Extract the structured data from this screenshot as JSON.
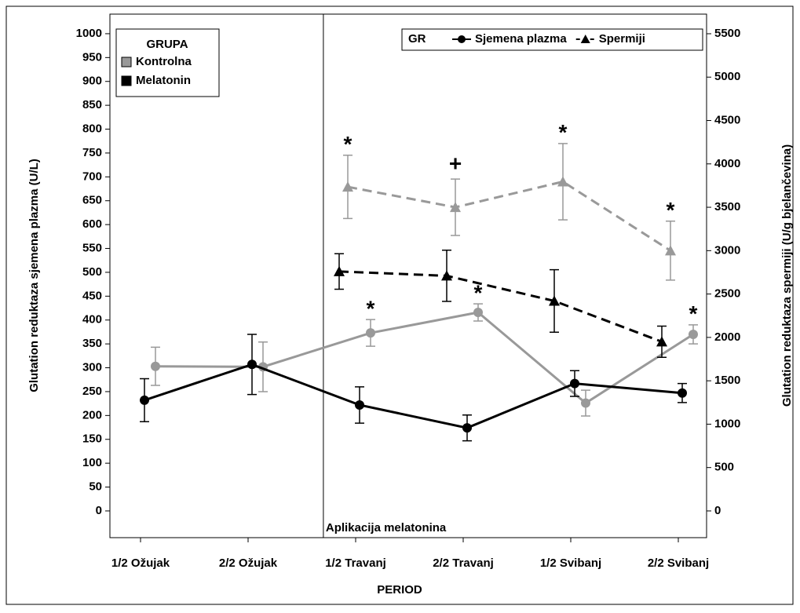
{
  "chart_data": {
    "type": "line",
    "xlabel": "PERIOD",
    "ylabel": "Glutation reduktaza sjemena plazma (U/L)",
    "y2label": "Glutation reduktaza spermiji (U/g bjelančevina)",
    "categories": [
      "1/2 Ožujak",
      "2/2 Ožujak",
      "1/2 Travanj",
      "2/2 Travanj",
      "1/2 Svibanj",
      "2/2 Svibanj"
    ],
    "ylim": [
      -56,
      1041
    ],
    "yticks": [
      0,
      50,
      100,
      150,
      200,
      250,
      300,
      350,
      400,
      450,
      500,
      550,
      600,
      650,
      700,
      750,
      800,
      850,
      900,
      950,
      1000
    ],
    "y2lim": [
      -308,
      5726
    ],
    "y2ticks": [
      0,
      500,
      1000,
      1500,
      2000,
      2500,
      3000,
      3500,
      4000,
      4500,
      5000,
      5500
    ],
    "reference_line": {
      "x": 1.7,
      "label": "Aplikacija melatonina"
    },
    "legend_groups": {
      "title": "GRUPA",
      "entries": [
        {
          "name": "Kontrolna",
          "color": "#999999"
        },
        {
          "name": "Melatonin",
          "color": "#000000"
        }
      ]
    },
    "legend_measures": {
      "title": "GR",
      "entries": [
        {
          "name": "Sjemena plazma",
          "marker": "circle",
          "dash": "solid"
        },
        {
          "name": "Spermiji",
          "marker": "triangle",
          "dash": "dashed"
        }
      ]
    },
    "series": [
      {
        "color": "#999999",
        "marker": "circle",
        "dash": "solid",
        "axis": "y",
        "values": [
          303,
          302,
          373,
          416,
          226,
          370
        ],
        "errors": [
          40,
          52,
          28,
          18,
          27,
          20
        ],
        "annotations": [
          null,
          null,
          "*",
          "*",
          null,
          "*"
        ]
      },
      {
        "color": "#000000",
        "marker": "circle",
        "dash": "solid",
        "axis": "y",
        "values": [
          232,
          307,
          222,
          174,
          267,
          247
        ],
        "errors": [
          45,
          63,
          38,
          27,
          27,
          20
        ],
        "annotations": [
          null,
          null,
          null,
          null,
          null,
          null
        ]
      },
      {
        "color": "#999999",
        "marker": "triangle",
        "dash": "dashed",
        "axis": "y2",
        "values": [
          null,
          null,
          3735,
          3500,
          3795,
          3000
        ],
        "errors": [
          null,
          null,
          365,
          325,
          440,
          340
        ],
        "annotations": [
          null,
          null,
          "*",
          "+",
          "*",
          "*"
        ]
      },
      {
        "color": "#000000",
        "marker": "triangle",
        "dash": "dashed",
        "axis": "y2",
        "values": [
          null,
          null,
          2760,
          2710,
          2420,
          1950
        ],
        "errors": [
          null,
          null,
          205,
          295,
          360,
          180
        ],
        "annotations": [
          null,
          null,
          null,
          null,
          null,
          null
        ]
      }
    ]
  }
}
